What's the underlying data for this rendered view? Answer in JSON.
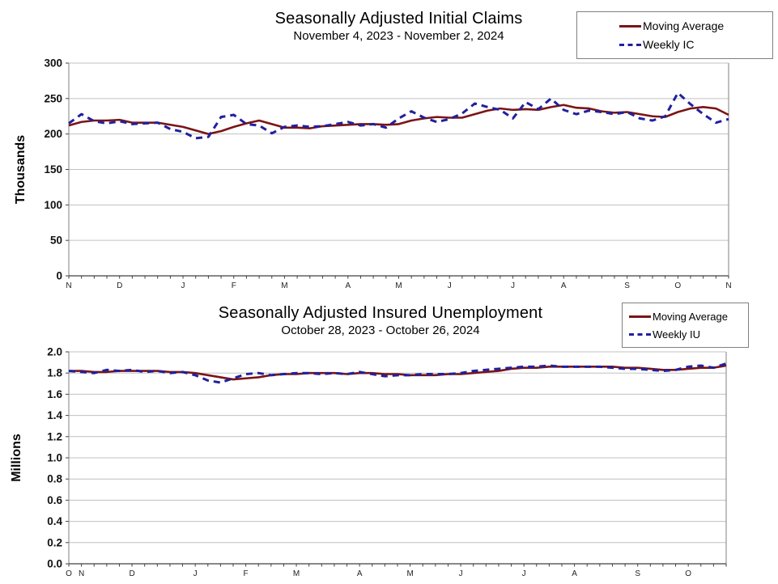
{
  "chart_data": [
    {
      "type": "line",
      "title": "Seasonally Adjusted Initial Claims",
      "subtitle": "November 4, 2023 - November 2, 2024",
      "ylabel": "Thousands",
      "xlabel": "",
      "ylim": [
        0,
        300
      ],
      "yticks": [
        0,
        50,
        100,
        150,
        200,
        250,
        300
      ],
      "ytick_labels": [
        "0",
        "50",
        "100",
        "150",
        "200",
        "250",
        "300"
      ],
      "grid": true,
      "legend_position": "top-right",
      "weeks": 53,
      "x_month_labels": [
        "N",
        "D",
        "J",
        "F",
        "M",
        "A",
        "M",
        "J",
        "J",
        "A",
        "S",
        "O",
        "N"
      ],
      "x_month_week_index": [
        1,
        5,
        10,
        14,
        18,
        23,
        27,
        31,
        36,
        40,
        45,
        49,
        53
      ],
      "colors": {
        "moving_average": "#7a1416",
        "weekly": "#20209e",
        "grid": "#c0c0c0",
        "axis": "#808080",
        "baseline": "#404040"
      },
      "series": [
        {
          "name": "Moving Average",
          "style": "solid",
          "values": [
            212,
            217,
            219,
            219,
            220,
            216,
            216,
            216,
            213,
            210,
            205,
            200,
            204,
            210,
            215,
            219,
            214,
            209,
            209,
            208,
            211,
            212,
            213,
            214,
            214,
            213,
            214,
            219,
            222,
            224,
            223,
            223,
            228,
            233,
            236,
            234,
            235,
            234,
            238,
            241,
            237,
            236,
            232,
            230,
            231,
            228,
            225,
            224,
            231,
            236,
            238,
            236,
            227
          ]
        },
        {
          "name": "Weekly IC",
          "style": "dashed",
          "values": [
            215,
            228,
            218,
            215,
            218,
            214,
            215,
            216,
            207,
            203,
            194,
            196,
            224,
            227,
            214,
            212,
            201,
            210,
            212,
            210,
            211,
            214,
            217,
            212,
            214,
            209,
            222,
            232,
            223,
            217,
            221,
            229,
            243,
            238,
            234,
            222,
            245,
            235,
            250,
            234,
            228,
            233,
            231,
            228,
            231,
            222,
            219,
            225,
            258,
            242,
            228,
            216,
            221
          ]
        }
      ]
    },
    {
      "type": "line",
      "title": "Seasonally Adjusted Insured Unemployment",
      "subtitle": "October 28, 2023 - October 26, 2024",
      "ylabel": "Millions",
      "xlabel": "",
      "ylim": [
        0,
        2.0
      ],
      "yticks": [
        0,
        0.2,
        0.4,
        0.6,
        0.8,
        1.0,
        1.2,
        1.4,
        1.6,
        1.8,
        2.0
      ],
      "ytick_labels": [
        "0.0",
        "0.2",
        "0.4",
        "0.6",
        "0.8",
        "1.0",
        "1.2",
        "1.4",
        "1.6",
        "1.8",
        "2.0"
      ],
      "grid": true,
      "legend_position": "top-right",
      "weeks": 53,
      "x_month_labels": [
        "O",
        "N",
        "D",
        "J",
        "F",
        "M",
        "A",
        "M",
        "J",
        "J",
        "A",
        "S",
        "O"
      ],
      "x_month_week_index": [
        1,
        2,
        6,
        11,
        15,
        19,
        24,
        28,
        32,
        37,
        41,
        46,
        50
      ],
      "colors": {
        "moving_average": "#7a1416",
        "weekly": "#20209e",
        "grid": "#c0c0c0",
        "axis": "#808080",
        "baseline": "#404040"
      },
      "series": [
        {
          "name": "Moving Average",
          "style": "solid",
          "values": [
            1.82,
            1.82,
            1.81,
            1.81,
            1.82,
            1.82,
            1.82,
            1.82,
            1.81,
            1.81,
            1.8,
            1.78,
            1.76,
            1.74,
            1.75,
            1.76,
            1.78,
            1.79,
            1.79,
            1.8,
            1.8,
            1.8,
            1.79,
            1.8,
            1.8,
            1.79,
            1.79,
            1.78,
            1.78,
            1.78,
            1.79,
            1.79,
            1.8,
            1.81,
            1.82,
            1.84,
            1.85,
            1.85,
            1.86,
            1.86,
            1.86,
            1.86,
            1.86,
            1.86,
            1.85,
            1.85,
            1.84,
            1.83,
            1.83,
            1.84,
            1.85,
            1.85,
            1.87
          ]
        },
        {
          "name": "Weekly IU",
          "style": "dashed",
          "values": [
            1.82,
            1.81,
            1.8,
            1.83,
            1.82,
            1.83,
            1.81,
            1.82,
            1.8,
            1.81,
            1.78,
            1.73,
            1.71,
            1.75,
            1.79,
            1.8,
            1.78,
            1.79,
            1.8,
            1.8,
            1.79,
            1.8,
            1.79,
            1.81,
            1.79,
            1.77,
            1.78,
            1.78,
            1.79,
            1.79,
            1.79,
            1.8,
            1.82,
            1.83,
            1.84,
            1.85,
            1.86,
            1.86,
            1.87,
            1.86,
            1.86,
            1.86,
            1.86,
            1.85,
            1.84,
            1.84,
            1.83,
            1.82,
            1.83,
            1.86,
            1.87,
            1.85,
            1.89
          ]
        }
      ]
    }
  ]
}
